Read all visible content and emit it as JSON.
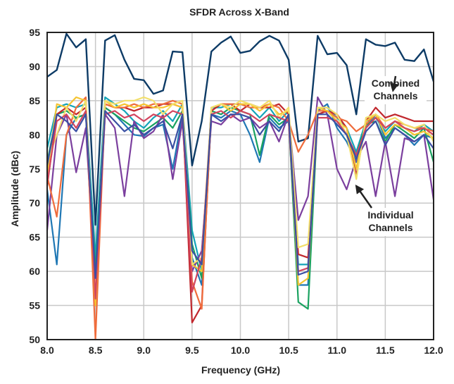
{
  "chart_data": {
    "type": "line",
    "title": "SFDR Across X-Band",
    "xlabel": "Frequency (GHz)",
    "ylabel": "Amplitude (dBc)",
    "xlim": [
      8.0,
      12.0
    ],
    "ylim": [
      50,
      95
    ],
    "xticks": [
      "8.0",
      "8.5",
      "9.0",
      "9.5",
      "10.0",
      "10.5",
      "11.0",
      "11.5",
      "12.0"
    ],
    "yticks": [
      "50",
      "55",
      "60",
      "65",
      "70",
      "75",
      "80",
      "85",
      "90",
      "95"
    ],
    "grid": true,
    "legend": "none",
    "annotations": [
      {
        "text_lines": [
          "Combined",
          "Channels"
        ],
        "points_to": [
          11.58,
          86.5
        ]
      },
      {
        "text_lines": [
          "Individual",
          "Channels"
        ],
        "points_to": [
          11.2,
          72.5
        ]
      }
    ],
    "x": [
      8.0,
      8.1,
      8.2,
      8.3,
      8.4,
      8.5,
      8.6,
      8.7,
      8.8,
      8.9,
      9.0,
      9.1,
      9.2,
      9.3,
      9.4,
      9.5,
      9.6,
      9.7,
      9.8,
      9.9,
      10.0,
      10.1,
      10.2,
      10.3,
      10.4,
      10.5,
      10.6,
      10.7,
      10.8,
      10.9,
      11.0,
      11.1,
      11.2,
      11.3,
      11.4,
      11.5,
      11.6,
      11.7,
      11.8,
      11.9,
      12.0
    ],
    "series": [
      {
        "color": "#0d3b66",
        "values": [
          88.5,
          89.5,
          94.8,
          92.8,
          94.0,
          66.8,
          93.8,
          94.6,
          91.0,
          88.2,
          88.0,
          86.0,
          86.5,
          92.2,
          92.1,
          75.5,
          82.0,
          92.2,
          93.5,
          94.4,
          92.0,
          92.3,
          93.7,
          94.5,
          93.8,
          91.0,
          79.0,
          79.5,
          94.5,
          91.8,
          92.0,
          90.2,
          83.0,
          94.0,
          93.2,
          93.0,
          93.5,
          91.0,
          90.8,
          92.5,
          87.8
        ]
      },
      {
        "color": "#1f77b4",
        "values": [
          72.0,
          61.0,
          80.0,
          82.5,
          83.0,
          55.0,
          84.0,
          83.0,
          81.5,
          80.0,
          79.8,
          81.0,
          81.5,
          75.0,
          83.0,
          62.0,
          58.0,
          83.0,
          82.5,
          83.5,
          83.0,
          80.0,
          76.0,
          82.5,
          81.0,
          82.0,
          58.0,
          58.0,
          83.5,
          84.5,
          81.0,
          79.0,
          76.0,
          81.0,
          83.0,
          79.5,
          81.0,
          80.0,
          78.5,
          80.0,
          79.5
        ]
      },
      {
        "color": "#12a4b8",
        "values": [
          78.0,
          84.0,
          84.5,
          84.0,
          84.5,
          62.0,
          85.5,
          84.5,
          83.5,
          82.0,
          81.0,
          82.5,
          83.5,
          82.0,
          84.5,
          66.0,
          60.0,
          84.0,
          84.0,
          84.5,
          84.5,
          84.0,
          82.5,
          84.0,
          82.0,
          83.5,
          61.0,
          61.0,
          84.0,
          84.0,
          82.5,
          81.0,
          77.5,
          82.0,
          82.5,
          80.5,
          82.0,
          81.0,
          80.5,
          81.5,
          80.5
        ]
      },
      {
        "color": "#1aa260",
        "values": [
          76.0,
          83.0,
          83.5,
          82.5,
          83.0,
          60.0,
          84.0,
          83.0,
          82.0,
          81.0,
          80.5,
          81.5,
          82.5,
          81.0,
          83.5,
          64.0,
          59.0,
          83.5,
          83.0,
          84.0,
          83.5,
          83.0,
          77.0,
          83.0,
          81.5,
          82.5,
          55.5,
          54.5,
          83.0,
          83.5,
          82.0,
          80.0,
          77.0,
          81.5,
          82.0,
          79.0,
          81.5,
          80.5,
          79.5,
          81.0,
          76.0
        ]
      },
      {
        "color": "#7b3f9e",
        "values": [
          66.0,
          80.0,
          83.0,
          74.5,
          81.0,
          58.0,
          83.0,
          81.0,
          71.0,
          82.0,
          79.5,
          80.5,
          83.0,
          73.5,
          82.0,
          60.0,
          63.0,
          82.0,
          81.5,
          83.0,
          82.0,
          82.5,
          81.0,
          82.0,
          79.0,
          83.0,
          67.5,
          71.0,
          85.5,
          83.0,
          75.0,
          72.0,
          76.5,
          79.0,
          71.0,
          79.0,
          71.0,
          79.5,
          79.0,
          80.0,
          70.5
        ]
      },
      {
        "color": "#c1272d",
        "values": [
          72.5,
          83.0,
          84.0,
          83.0,
          84.0,
          56.0,
          84.5,
          84.0,
          84.0,
          83.5,
          84.0,
          84.0,
          84.5,
          84.5,
          84.0,
          52.5,
          55.0,
          83.5,
          84.5,
          84.5,
          83.5,
          84.5,
          84.0,
          84.0,
          84.5,
          83.0,
          62.5,
          62.0,
          83.0,
          83.5,
          83.0,
          81.0,
          74.0,
          82.0,
          84.0,
          82.5,
          83.0,
          82.5,
          82.0,
          82.0,
          82.0
        ]
      },
      {
        "color": "#ef6c3c",
        "values": [
          74.0,
          68.0,
          80.0,
          84.0,
          85.5,
          50.0,
          84.5,
          84.0,
          84.0,
          84.5,
          84.0,
          84.5,
          84.5,
          85.0,
          84.5,
          58.5,
          54.5,
          84.0,
          84.5,
          84.5,
          84.5,
          84.0,
          84.0,
          84.5,
          84.0,
          82.0,
          77.5,
          80.0,
          83.5,
          83.5,
          82.5,
          82.0,
          80.5,
          81.5,
          83.0,
          81.0,
          82.0,
          81.5,
          81.0,
          81.0,
          80.5
        ]
      },
      {
        "color": "#f5c431",
        "values": [
          74.0,
          84.5,
          84.0,
          85.5,
          85.0,
          55.0,
          85.0,
          84.0,
          84.5,
          84.0,
          84.5,
          84.0,
          84.0,
          84.5,
          84.0,
          61.0,
          60.0,
          84.0,
          84.5,
          83.5,
          84.5,
          84.5,
          83.5,
          84.5,
          83.0,
          83.5,
          58.0,
          59.0,
          84.0,
          83.5,
          82.0,
          81.0,
          75.0,
          82.0,
          83.0,
          80.0,
          81.5,
          81.0,
          80.0,
          80.5,
          79.5
        ]
      },
      {
        "color": "#f2df6b",
        "values": [
          76.0,
          80.0,
          84.0,
          82.0,
          85.0,
          57.0,
          85.0,
          84.5,
          85.0,
          85.0,
          85.5,
          85.0,
          83.0,
          84.5,
          85.0,
          61.0,
          62.0,
          84.0,
          84.5,
          84.0,
          85.0,
          84.5,
          84.0,
          85.0,
          82.5,
          84.0,
          63.5,
          64.0,
          84.0,
          84.0,
          83.0,
          80.0,
          73.5,
          82.5,
          83.0,
          82.0,
          82.5,
          81.5,
          81.0,
          81.5,
          79.0
        ]
      },
      {
        "color": "#d2455f",
        "values": [
          73.0,
          82.0,
          83.0,
          81.0,
          83.5,
          56.0,
          83.0,
          83.5,
          82.5,
          83.0,
          82.0,
          83.0,
          82.5,
          83.5,
          83.0,
          57.0,
          62.0,
          83.0,
          83.5,
          82.5,
          83.5,
          83.0,
          82.0,
          83.0,
          82.5,
          82.0,
          60.0,
          60.5,
          82.5,
          82.5,
          82.0,
          80.0,
          77.0,
          81.0,
          82.5,
          81.0,
          82.0,
          81.0,
          80.5,
          81.0,
          80.0
        ]
      },
      {
        "color": "#3a4fa3",
        "values": [
          75.5,
          83.0,
          82.0,
          80.5,
          83.0,
          59.0,
          83.5,
          82.0,
          80.5,
          81.5,
          80.0,
          81.0,
          82.0,
          78.0,
          83.0,
          63.0,
          61.0,
          83.0,
          82.0,
          83.0,
          83.0,
          82.5,
          80.0,
          82.0,
          80.5,
          83.0,
          59.5,
          60.0,
          83.0,
          83.0,
          81.5,
          80.0,
          76.5,
          80.5,
          82.0,
          78.5,
          81.0,
          80.0,
          79.0,
          80.0,
          78.0
        ]
      }
    ]
  }
}
